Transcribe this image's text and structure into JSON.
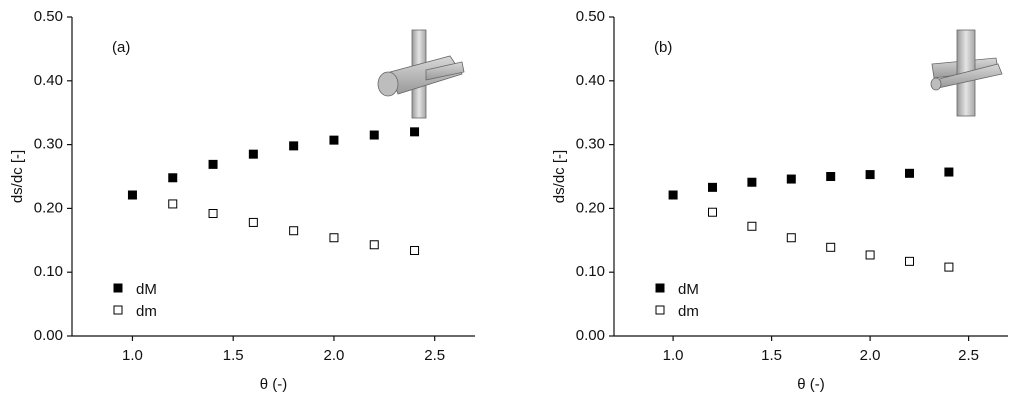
{
  "chart_data": [
    {
      "type": "scatter",
      "annotation": "(a)",
      "xlabel": "θ (-)",
      "ylabel": "ds/dc [-]",
      "x": [
        1.0,
        1.2,
        1.4,
        1.6,
        1.8,
        2.0,
        2.2,
        2.4
      ],
      "series": [
        {
          "name": "dM",
          "color": "#000000",
          "marker": "filled-square",
          "values": [
            0.221,
            0.248,
            0.269,
            0.285,
            0.298,
            0.307,
            0.315,
            0.32
          ]
        },
        {
          "name": "dm",
          "color": "#000000",
          "marker": "open-square",
          "values": [
            null,
            0.207,
            0.192,
            0.178,
            0.165,
            0.154,
            0.143,
            0.134
          ]
        }
      ],
      "xlim": [
        0.7,
        2.7
      ],
      "ylim": [
        0,
        0.5
      ],
      "xticks": [
        {
          "value": 1,
          "label": "1.0"
        },
        {
          "value": 1.5,
          "label": "1.5"
        },
        {
          "value": 2,
          "label": "2.0"
        },
        {
          "value": 2.5,
          "label": "2.5"
        }
      ],
      "yticks": [
        {
          "value": 0,
          "label": "0.00"
        },
        {
          "value": 0.1,
          "label": "0.10"
        },
        {
          "value": 0.2,
          "label": "0.20"
        },
        {
          "value": 0.3,
          "label": "0.30"
        },
        {
          "value": 0.4,
          "label": "0.40"
        },
        {
          "value": 0.5,
          "label": "0.50"
        }
      ],
      "legend": "lower left"
    },
    {
      "type": "scatter",
      "annotation": "(b)",
      "xlabel": "θ (-)",
      "ylabel": "ds/dc [-]",
      "x": [
        1.0,
        1.2,
        1.4,
        1.6,
        1.8,
        2.0,
        2.2,
        2.4
      ],
      "series": [
        {
          "name": "dM",
          "color": "#000000",
          "marker": "filled-square",
          "values": [
            0.221,
            0.233,
            0.241,
            0.246,
            0.25,
            0.253,
            0.255,
            0.257
          ]
        },
        {
          "name": "dm",
          "color": "#000000",
          "marker": "open-square",
          "values": [
            null,
            0.194,
            0.172,
            0.154,
            0.139,
            0.127,
            0.117,
            0.108
          ]
        }
      ],
      "xlim": [
        0.7,
        2.7
      ],
      "ylim": [
        0,
        0.5
      ],
      "xticks": [
        {
          "value": 1,
          "label": "1.0"
        },
        {
          "value": 1.5,
          "label": "1.5"
        },
        {
          "value": 2,
          "label": "2.0"
        },
        {
          "value": 2.5,
          "label": "2.5"
        }
      ],
      "yticks": [
        {
          "value": 0,
          "label": "0.00"
        },
        {
          "value": 0.1,
          "label": "0.10"
        },
        {
          "value": 0.2,
          "label": "0.20"
        },
        {
          "value": 0.3,
          "label": "0.30"
        },
        {
          "value": 0.4,
          "label": "0.40"
        },
        {
          "value": 0.5,
          "label": "0.50"
        }
      ],
      "legend": "lower left"
    }
  ]
}
